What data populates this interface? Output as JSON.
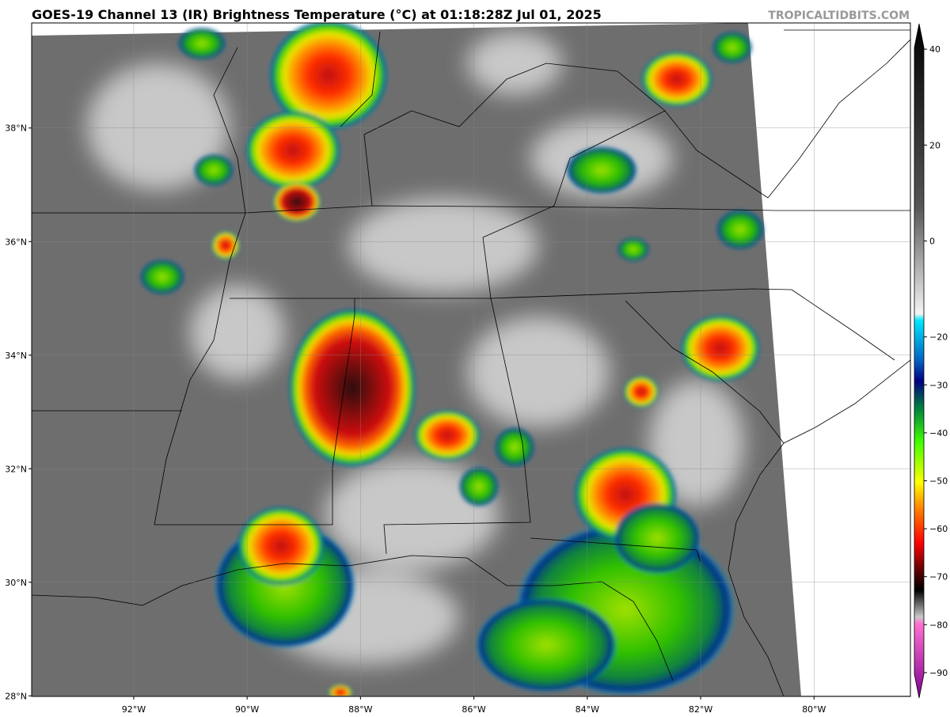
{
  "title": "GOES-19 Channel 13 (IR) Brightness Temperature (°C) at 01:18:28Z Jul 01, 2025",
  "credit": "TROPICALTIDBITS.COM",
  "map": {
    "xlim": [
      -93.8,
      -78.3
    ],
    "ylim": [
      27.99,
      39.85
    ],
    "xticks": [
      {
        "value": -92,
        "label": "92°W"
      },
      {
        "value": -90,
        "label": "90°W"
      },
      {
        "value": -88,
        "label": "88°W"
      },
      {
        "value": -86,
        "label": "86°W"
      },
      {
        "value": -84,
        "label": "84°W"
      },
      {
        "value": -82,
        "label": "82°W"
      },
      {
        "value": -80,
        "label": "80°W"
      }
    ],
    "yticks": [
      {
        "value": 28,
        "label": "28°N"
      },
      {
        "value": 30,
        "label": "30°N"
      },
      {
        "value": 32,
        "label": "32°N"
      },
      {
        "value": 34,
        "label": "34°N"
      },
      {
        "value": 36,
        "label": "36°N"
      },
      {
        "value": 38,
        "label": "38°N"
      }
    ]
  },
  "colorbar": {
    "lim": [
      -95.3,
      45.3
    ],
    "ticks": [
      40,
      20,
      0,
      {
        "value": -20,
        "label": "−20"
      },
      {
        "value": -30,
        "label": "−30"
      },
      {
        "value": -40,
        "label": "−40"
      },
      {
        "value": -50,
        "label": "−50"
      },
      {
        "value": -60,
        "label": "−60"
      },
      {
        "value": -70,
        "label": "−70"
      },
      {
        "value": -80,
        "label": "−80"
      },
      {
        "value": -90,
        "label": "−90"
      }
    ]
  }
}
